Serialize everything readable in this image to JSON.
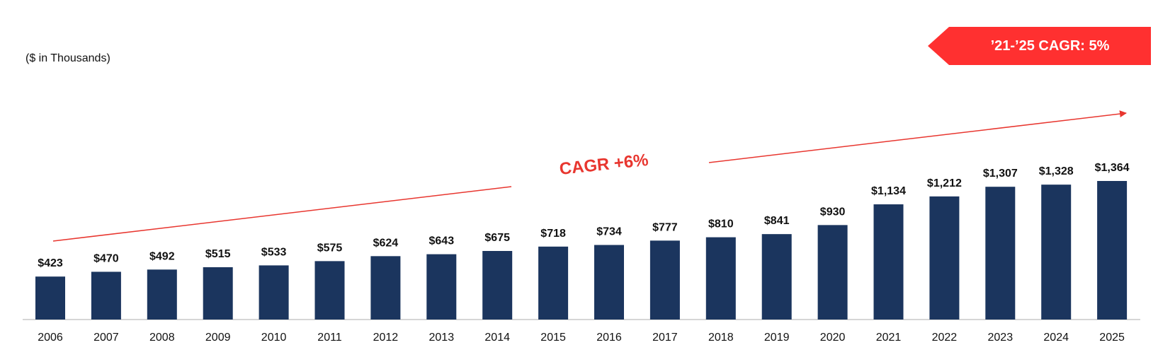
{
  "units_label": "($ in Thousands)",
  "callout": {
    "text": "’21-’25 CAGR: 5%",
    "color": "#ff3030"
  },
  "trend": {
    "label": "CAGR +6%",
    "color": "#e8362f"
  },
  "chart_data": {
    "type": "bar",
    "title": "",
    "xlabel": "",
    "ylabel": "",
    "grid": false,
    "bar_color": "#1b355e",
    "categories": [
      "2006",
      "2007",
      "2008",
      "2009",
      "2010",
      "2011",
      "2012",
      "2013",
      "2014",
      "2015",
      "2016",
      "2017",
      "2018",
      "2019",
      "2020",
      "2021",
      "2022",
      "2023",
      "2024",
      "2025"
    ],
    "values": [
      423,
      470,
      492,
      515,
      533,
      575,
      624,
      643,
      675,
      718,
      734,
      777,
      810,
      841,
      930,
      1134,
      1212,
      1307,
      1328,
      1364
    ],
    "data_labels": [
      "$423",
      "$470",
      "$492",
      "$515",
      "$533",
      "$575",
      "$624",
      "$643",
      "$675",
      "$718",
      "$734",
      "$777",
      "$810",
      "$841",
      "$930",
      "$1,134",
      "$1,212",
      "$1,307",
      "$1,328",
      "$1,364"
    ],
    "ylim": [
      0,
      1364
    ]
  }
}
